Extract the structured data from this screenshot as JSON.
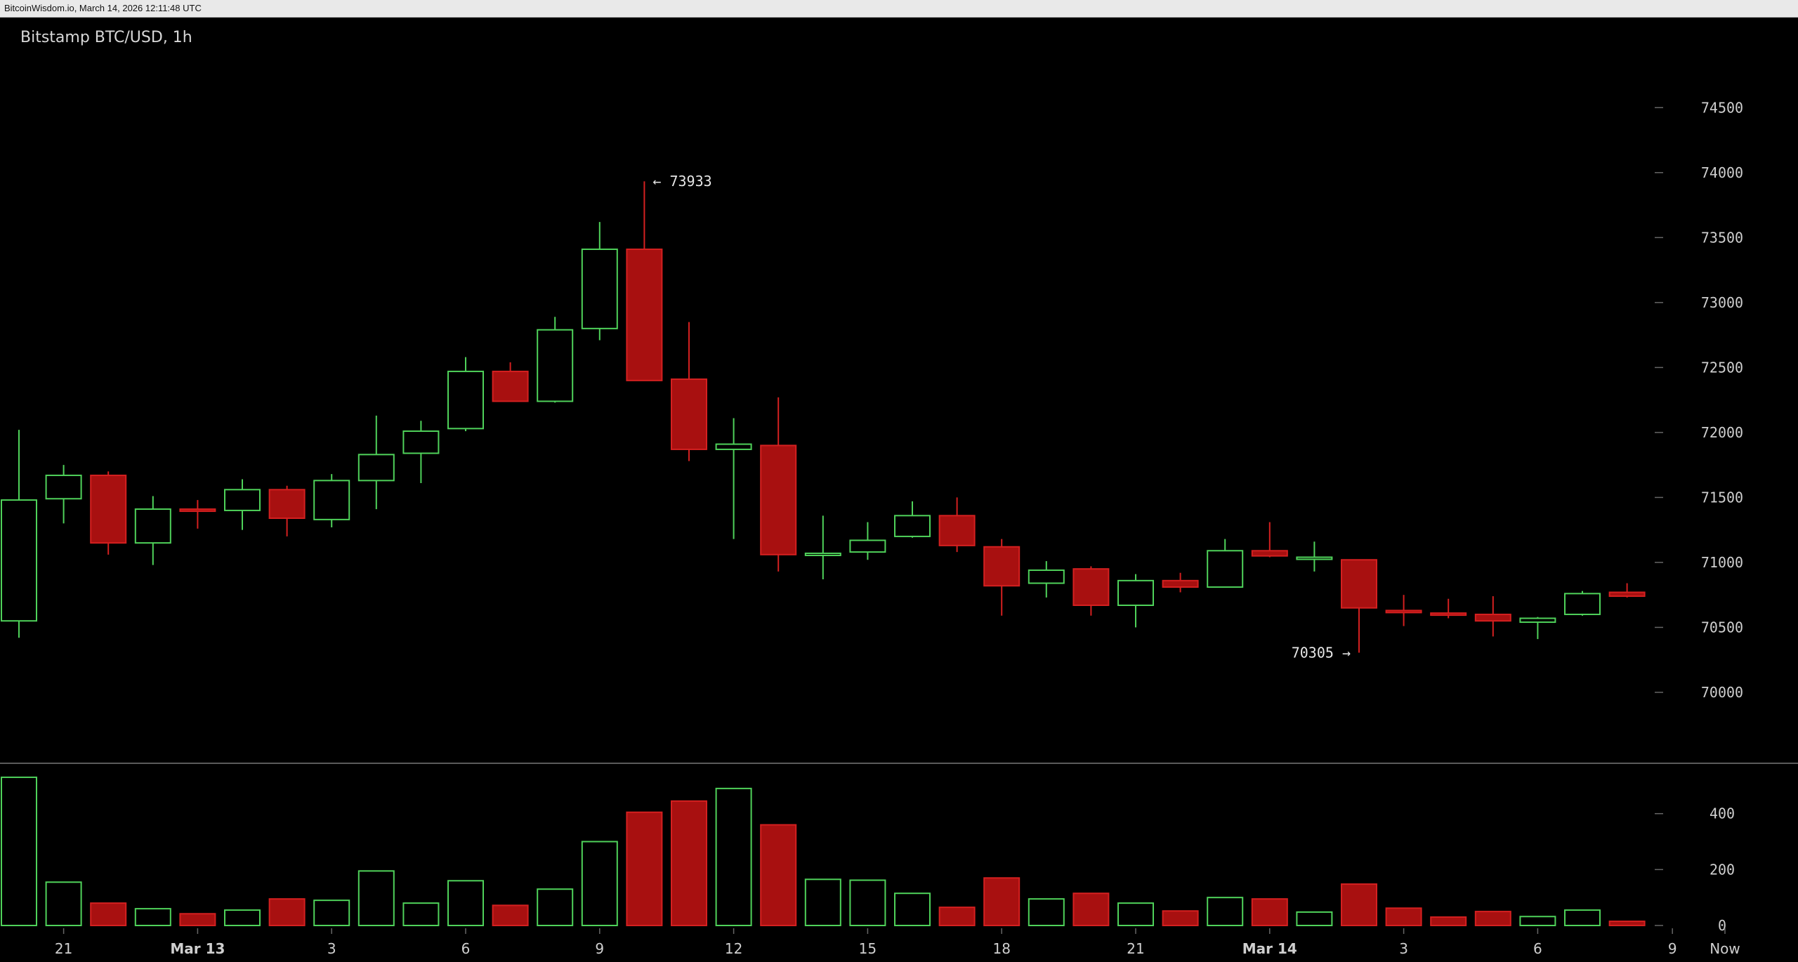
{
  "header": {
    "source_line": "BitcoinWisdom.io, March 14, 2026 12:11:48 UTC"
  },
  "chart_data": {
    "type": "candlestick",
    "title": "Bitstamp BTC/USD, 1h",
    "colors": {
      "up": "#4fd25a",
      "down": "#a81010",
      "down_wick": "#d42020",
      "background": "#000000",
      "axis_text": "#cfcfcf",
      "divider": "#5a5a5a"
    },
    "price_axis": {
      "ylim": [
        69600,
        74950
      ],
      "ticks": [
        74500,
        74000,
        73500,
        73000,
        72500,
        72000,
        71500,
        71000,
        70500,
        70000
      ]
    },
    "volume_axis": {
      "ylim": [
        0,
        560
      ],
      "ticks": [
        400,
        200,
        0
      ]
    },
    "x_axis": {
      "ticks": [
        {
          "label": "21",
          "index": 1
        },
        {
          "label": "Mar 13",
          "index": 4,
          "bold": true
        },
        {
          "label": "3",
          "index": 7
        },
        {
          "label": "6",
          "index": 10
        },
        {
          "label": "9",
          "index": 13
        },
        {
          "label": "12",
          "index": 16
        },
        {
          "label": "15",
          "index": 19
        },
        {
          "label": "18",
          "index": 22
        },
        {
          "label": "21",
          "index": 25
        },
        {
          "label": "Mar 14",
          "index": 28,
          "bold": true
        },
        {
          "label": "3",
          "index": 31
        },
        {
          "label": "6",
          "index": 34
        },
        {
          "label": "9",
          "index": 37
        },
        {
          "label": "Now",
          "index": 38
        }
      ]
    },
    "annotations": [
      {
        "text": "← 73933",
        "index": 14,
        "value": 73933,
        "side": "right"
      },
      {
        "text": "70305 →",
        "index": 30,
        "value": 70305,
        "side": "left"
      }
    ],
    "candles": [
      {
        "o": 70550,
        "h": 72020,
        "l": 70420,
        "c": 71480,
        "v": 530
      },
      {
        "o": 71490,
        "h": 71750,
        "l": 71300,
        "c": 71670,
        "v": 155
      },
      {
        "o": 71670,
        "h": 71700,
        "l": 71060,
        "c": 71150,
        "v": 80
      },
      {
        "o": 71150,
        "h": 71510,
        "l": 70980,
        "c": 71410,
        "v": 60
      },
      {
        "o": 71410,
        "h": 71480,
        "l": 71260,
        "c": 71400,
        "v": 42
      },
      {
        "o": 71400,
        "h": 71640,
        "l": 71250,
        "c": 71560,
        "v": 55
      },
      {
        "o": 71560,
        "h": 71590,
        "l": 71200,
        "c": 71340,
        "v": 95
      },
      {
        "o": 71330,
        "h": 71680,
        "l": 71270,
        "c": 71630,
        "v": 90
      },
      {
        "o": 71630,
        "h": 72130,
        "l": 71410,
        "c": 71830,
        "v": 195
      },
      {
        "o": 71840,
        "h": 72090,
        "l": 71610,
        "c": 72010,
        "v": 80
      },
      {
        "o": 72030,
        "h": 72580,
        "l": 72010,
        "c": 72470,
        "v": 160
      },
      {
        "o": 72470,
        "h": 72540,
        "l": 72240,
        "c": 72240,
        "v": 72
      },
      {
        "o": 72240,
        "h": 72890,
        "l": 72230,
        "c": 72790,
        "v": 130
      },
      {
        "o": 72800,
        "h": 73620,
        "l": 72710,
        "c": 73410,
        "v": 300
      },
      {
        "o": 73410,
        "h": 73933,
        "l": 72400,
        "c": 72400,
        "v": 405
      },
      {
        "o": 72410,
        "h": 72850,
        "l": 71780,
        "c": 71870,
        "v": 445
      },
      {
        "o": 71870,
        "h": 72110,
        "l": 71180,
        "c": 71910,
        "v": 490
      },
      {
        "o": 71900,
        "h": 72270,
        "l": 70930,
        "c": 71060,
        "v": 360
      },
      {
        "o": 71060,
        "h": 71360,
        "l": 70870,
        "c": 71070,
        "v": 165
      },
      {
        "o": 71080,
        "h": 71310,
        "l": 71020,
        "c": 71170,
        "v": 162
      },
      {
        "o": 71200,
        "h": 71470,
        "l": 71190,
        "c": 71360,
        "v": 115
      },
      {
        "o": 71360,
        "h": 71500,
        "l": 71080,
        "c": 71130,
        "v": 65
      },
      {
        "o": 71120,
        "h": 71180,
        "l": 70590,
        "c": 70820,
        "v": 170
      },
      {
        "o": 70840,
        "h": 71010,
        "l": 70730,
        "c": 70940,
        "v": 95
      },
      {
        "o": 70950,
        "h": 70970,
        "l": 70590,
        "c": 70670,
        "v": 115
      },
      {
        "o": 70670,
        "h": 70910,
        "l": 70500,
        "c": 70860,
        "v": 80
      },
      {
        "o": 70860,
        "h": 70920,
        "l": 70770,
        "c": 70810,
        "v": 52
      },
      {
        "o": 70810,
        "h": 71180,
        "l": 70810,
        "c": 71090,
        "v": 100
      },
      {
        "o": 71090,
        "h": 71310,
        "l": 71040,
        "c": 71050,
        "v": 95
      },
      {
        "o": 71040,
        "h": 71160,
        "l": 70930,
        "c": 71040,
        "v": 48
      },
      {
        "o": 71020,
        "h": 71020,
        "l": 70305,
        "c": 70650,
        "v": 148
      },
      {
        "o": 70630,
        "h": 70750,
        "l": 70510,
        "c": 70620,
        "v": 62
      },
      {
        "o": 70610,
        "h": 70720,
        "l": 70570,
        "c": 70600,
        "v": 30
      },
      {
        "o": 70600,
        "h": 70740,
        "l": 70430,
        "c": 70550,
        "v": 50
      },
      {
        "o": 70540,
        "h": 70580,
        "l": 70410,
        "c": 70570,
        "v": 32
      },
      {
        "o": 70600,
        "h": 70780,
        "l": 70590,
        "c": 70760,
        "v": 55
      },
      {
        "o": 70770,
        "h": 70840,
        "l": 70730,
        "c": 70740,
        "v": 15
      }
    ]
  }
}
